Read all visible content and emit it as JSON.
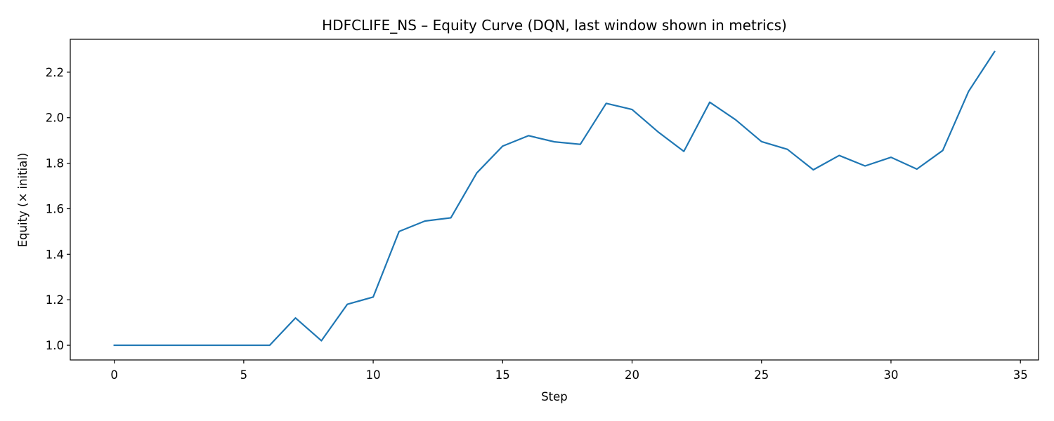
{
  "chart_data": {
    "type": "line",
    "title": "HDFCLIFE_NS – Equity Curve (DQN, last window shown in metrics)",
    "xlabel": "Step",
    "ylabel": "Equity (× initial)",
    "xlim": [
      -1.7,
      35.7
    ],
    "ylim": [
      0.9355,
      2.3445
    ],
    "xticks": [
      0,
      5,
      10,
      15,
      20,
      25,
      30,
      35
    ],
    "xtick_labels": [
      "0",
      "5",
      "10",
      "15",
      "20",
      "25",
      "30",
      "35"
    ],
    "yticks": [
      1.0,
      1.2,
      1.4,
      1.6,
      1.8,
      2.0,
      2.2
    ],
    "ytick_labels": [
      "1.0",
      "1.2",
      "1.4",
      "1.6",
      "1.8",
      "2.0",
      "2.2"
    ],
    "grid": false,
    "series": [
      {
        "color": "#1f77b4",
        "x": [
          0,
          1,
          2,
          3,
          4,
          5,
          6,
          7,
          8,
          9,
          10,
          11,
          12,
          13,
          14,
          15,
          16,
          17,
          18,
          19,
          20,
          21,
          22,
          23,
          24,
          25,
          26,
          27,
          28,
          29,
          30,
          31,
          32,
          33,
          34
        ],
        "y": [
          1.0,
          1.0,
          1.0,
          1.0,
          1.0,
          1.0,
          1.0,
          1.12,
          1.02,
          1.18,
          1.212,
          1.5,
          1.546,
          1.56,
          1.757,
          1.875,
          1.921,
          1.894,
          1.883,
          2.063,
          2.036,
          1.938,
          1.852,
          2.068,
          1.991,
          1.895,
          1.861,
          1.771,
          1.834,
          1.788,
          1.826,
          1.774,
          1.856,
          2.116,
          2.29
        ]
      }
    ]
  }
}
